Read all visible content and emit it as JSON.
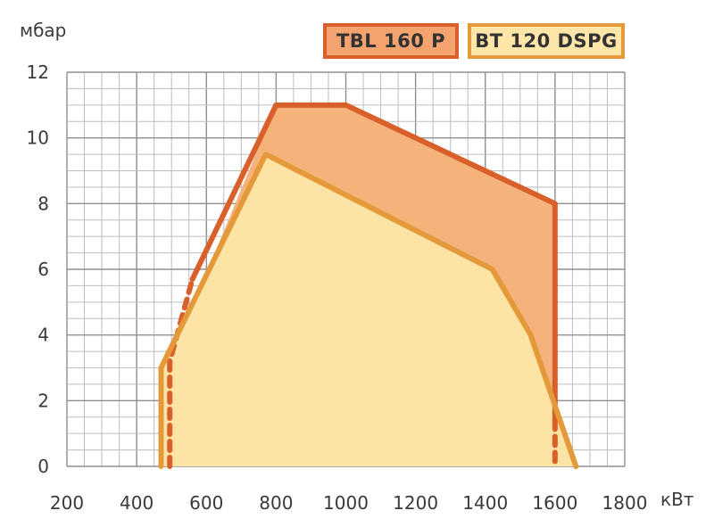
{
  "chart_data": {
    "type": "area",
    "title": "",
    "xlabel": "кВт",
    "ylabel": "мбар",
    "xlim": [
      200,
      1800
    ],
    "ylim": [
      0,
      12
    ],
    "xticks": [
      "200",
      "400",
      "600",
      "800",
      "1000",
      "1200",
      "1400",
      "1600",
      "1800"
    ],
    "yticks": [
      "0",
      "2",
      "4",
      "6",
      "8",
      "10",
      "12"
    ],
    "grid": true,
    "legend_position": "top-right",
    "series": [
      {
        "name": "TBL 160 P",
        "fill": "#f5b27a",
        "stroke": "#d9602a",
        "legend_fill": "#f5a470",
        "points": [
          [
            495,
            0
          ],
          [
            495,
            3.2
          ],
          [
            800,
            11
          ],
          [
            1000,
            11
          ],
          [
            1600,
            8
          ],
          [
            1600,
            0
          ]
        ],
        "dashed_edges": [
          [
            [
              495,
              0
            ],
            [
              495,
              3.2
            ],
            [
              560,
              5.7
            ]
          ],
          [
            [
              1600,
              1.4
            ],
            [
              1600,
              0
            ]
          ]
        ]
      },
      {
        "name": "BT 120 DSPG",
        "fill": "#fde4a4",
        "stroke": "#e49a3a",
        "legend_fill": "#fde6a8",
        "points": [
          [
            470,
            0
          ],
          [
            470,
            3
          ],
          [
            770,
            9.5
          ],
          [
            1420,
            6
          ],
          [
            1530,
            4
          ],
          [
            1660,
            0
          ]
        ],
        "dashed_edges": []
      }
    ]
  }
}
